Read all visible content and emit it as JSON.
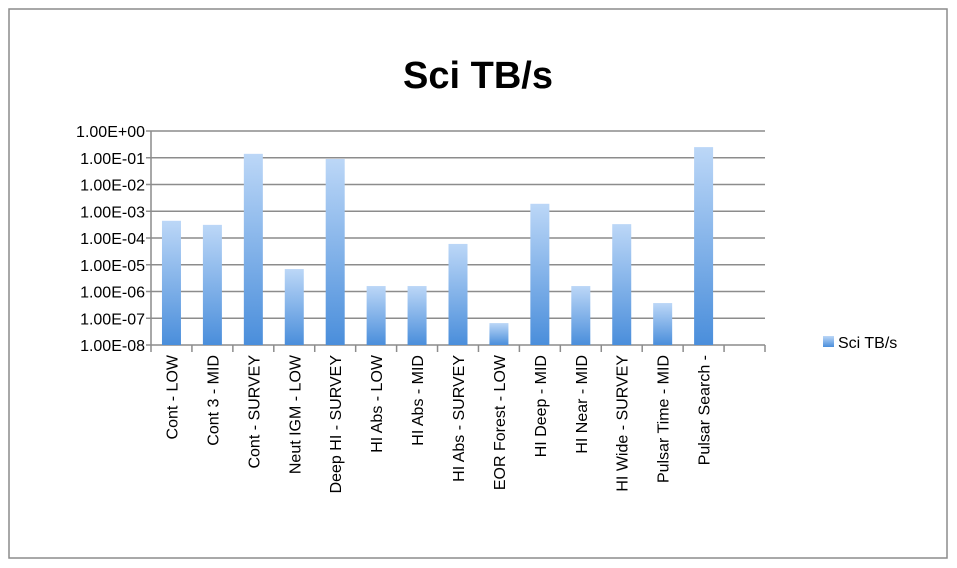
{
  "chart_data": {
    "type": "bar",
    "title": "Sci TB/s",
    "categories": [
      "Cont - LOW",
      "Cont 3 - MID",
      "Cont - SURVEY",
      "Neut IGM - LOW",
      "Deep HI - SURVEY",
      "HI Abs - LOW",
      "HI Abs - MID",
      "HI Abs - SURVEY",
      "EOR Forest - LOW",
      "HI Deep - MID",
      "HI Near - MID",
      "HI Wide - SURVEY",
      "Pulsar Time - MID",
      "Pulsar Search -",
      null
    ],
    "series": [
      {
        "name": "Sci TB/s",
        "color": "#5b9be0",
        "values": [
          0.00044,
          0.00031,
          0.14,
          6.9e-06,
          0.09,
          1.6e-06,
          1.6e-06,
          6e-05,
          6.6e-08,
          0.0019,
          1.6e-06,
          0.00033,
          3.7e-07,
          0.25,
          null
        ]
      }
    ],
    "log": true,
    "ylim": [
      1e-08,
      1
    ],
    "yticks": [
      {
        "value": 1e-08,
        "label": "1.00E-08"
      },
      {
        "value": 1e-07,
        "label": "1.00E-07"
      },
      {
        "value": 1e-06,
        "label": "1.00E-06"
      },
      {
        "value": 1e-05,
        "label": "1.00E-05"
      },
      {
        "value": 0.0001,
        "label": "1.00E-04"
      },
      {
        "value": 0.001,
        "label": "1.00E-03"
      },
      {
        "value": 0.01,
        "label": "1.00E-02"
      },
      {
        "value": 0.1,
        "label": "1.00E-01"
      },
      {
        "value": 1,
        "label": "1.00E+00"
      }
    ],
    "grid": true,
    "legend": "right"
  }
}
